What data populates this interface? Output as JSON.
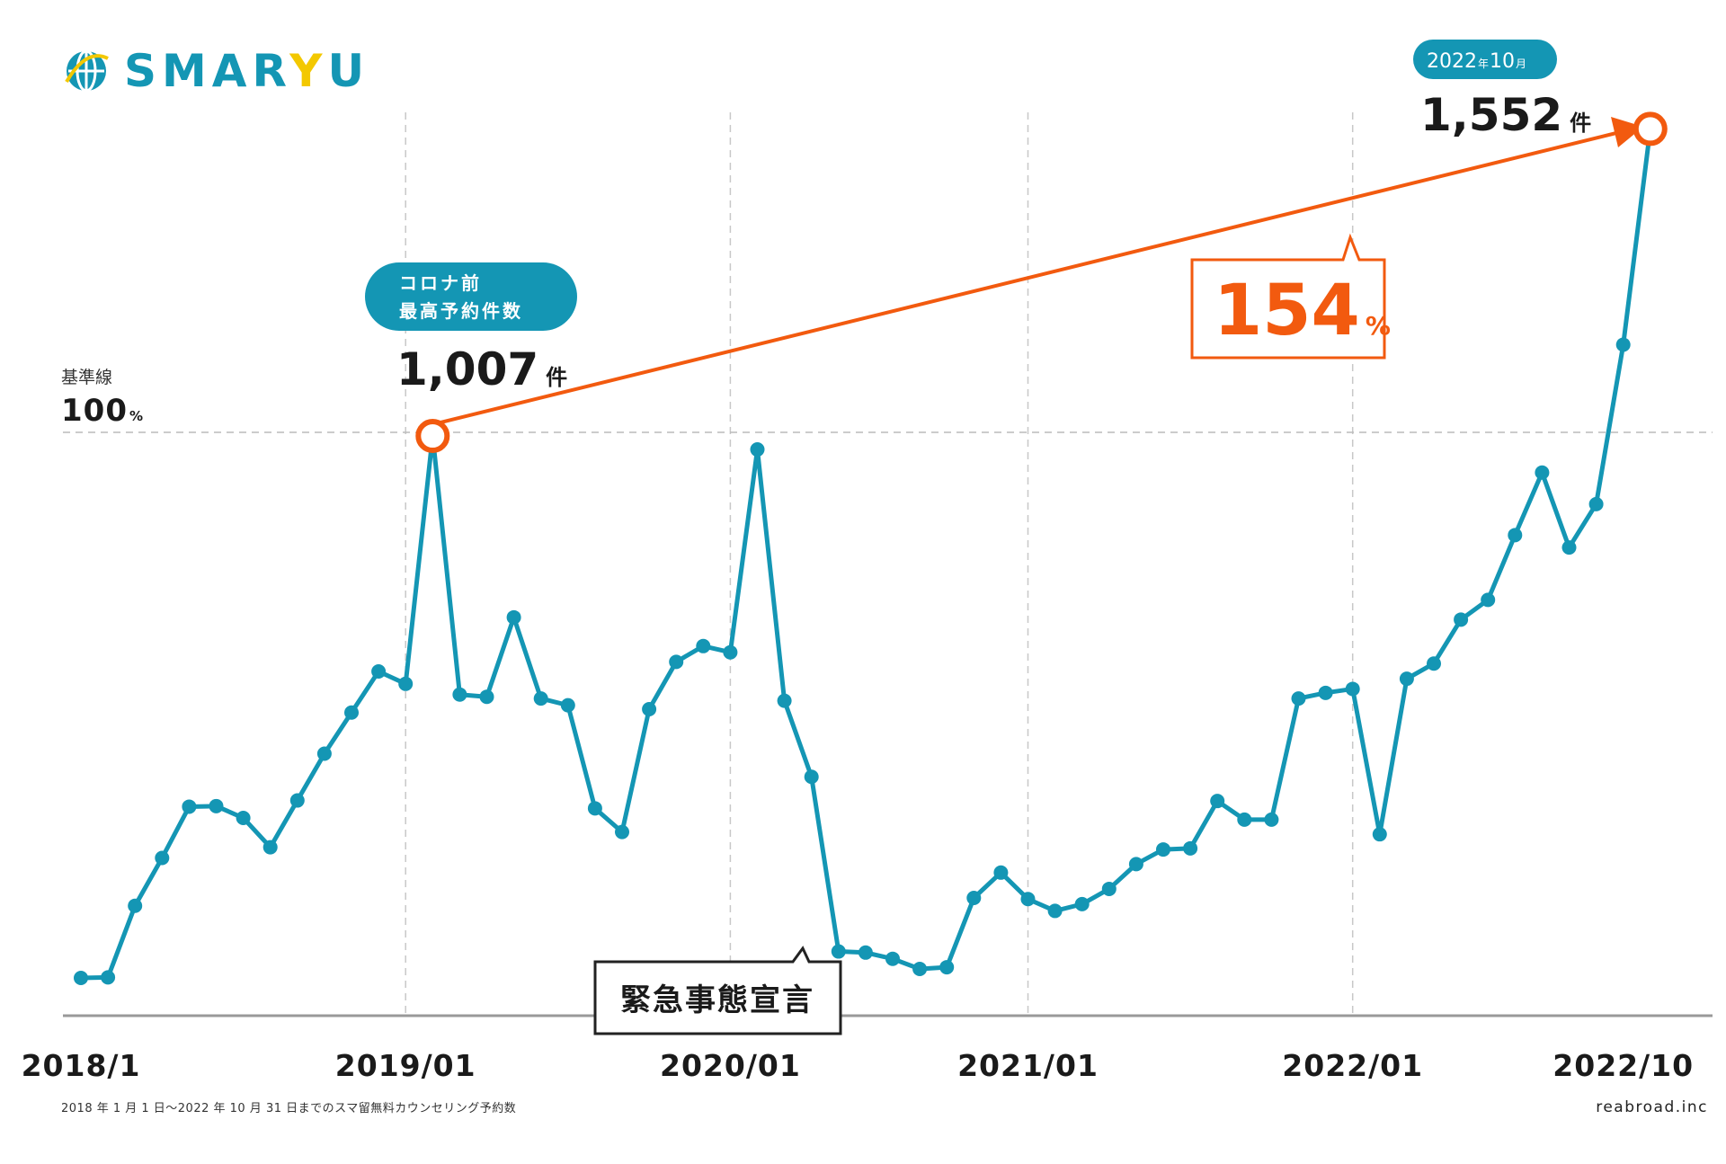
{
  "brand": {
    "logo_prefix": "SMAR",
    "logo_y": "Y",
    "logo_suffix": "U",
    "primary_color": "#1496b4",
    "accent_color": "#f3c800",
    "highlight_color": "#f25a0f"
  },
  "baseline": {
    "label": "基準線",
    "value": "100",
    "unit": "%"
  },
  "peak_callout": {
    "line1": "コロナ前",
    "line2": "最高予約件数",
    "value": "1,007",
    "unit": "件"
  },
  "latest_callout": {
    "year": "2022",
    "year_unit": "年",
    "month": "10",
    "month_unit": "月",
    "value": "1,552",
    "unit": "件"
  },
  "growth_callout": {
    "value": "154",
    "unit": "%"
  },
  "emergency_callout": {
    "label": "緊急事態宣言"
  },
  "footer": {
    "note": "2018 年 1 月 1 日〜2022 年 10 月 31 日までのスマ留無料カウンセリング予約数",
    "credit": "reabroad.inc"
  },
  "chart_data": {
    "type": "line",
    "x_tick_labels": [
      "2018/1",
      "2019/01",
      "2020/01",
      "2021/01",
      "2022/01",
      "2022/10"
    ],
    "x_tick_index": [
      0,
      12,
      24,
      35,
      47,
      57
    ],
    "series": [
      {
        "color": "#1496b4",
        "values": [
          45,
          46,
          173,
          258,
          349,
          350,
          329,
          277,
          360,
          443,
          516,
          589,
          567,
          1007,
          548,
          544,
          685,
          541,
          529,
          346,
          304,
          522,
          606,
          634,
          623,
          983,
          537,
          402,
          92,
          90,
          79,
          61,
          64,
          187,
          232,
          185,
          164,
          176,
          203,
          247,
          273,
          275,
          359,
          326,
          326,
          541,
          551,
          558,
          300,
          576,
          603,
          681,
          716,
          831,
          942,
          809,
          886,
          1169,
          1552
        ]
      }
    ],
    "reference_line": 1007,
    "highlighted_points": [
      13,
      58
    ]
  }
}
